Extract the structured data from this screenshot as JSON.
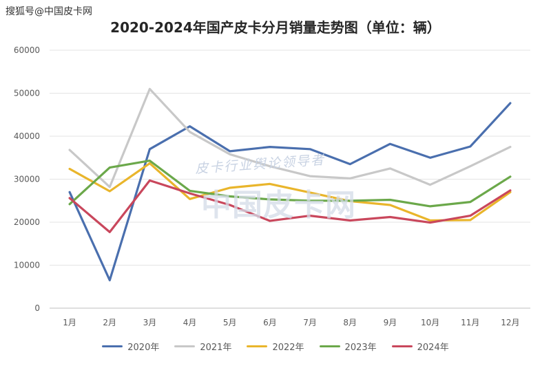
{
  "header": {
    "source_tag": "搜狐号@中国皮卡网",
    "title": "2020-2024年国产皮卡分月销量走势图（单位：辆）"
  },
  "watermark": {
    "top_text": "皮卡行业舆论领导者",
    "main_text": "中国皮卡网"
  },
  "chart_data": {
    "type": "line",
    "title": "2020-2024年国产皮卡分月销量走势图（单位：辆）",
    "xlabel": "",
    "ylabel": "",
    "categories": [
      "1月",
      "2月",
      "3月",
      "4月",
      "5月",
      "6月",
      "7月",
      "8月",
      "9月",
      "10月",
      "11月",
      "12月"
    ],
    "ylim": [
      0,
      60000
    ],
    "yticks": [
      0,
      10000,
      20000,
      30000,
      40000,
      50000,
      60000
    ],
    "grid": true,
    "legend_position": "bottom",
    "series": [
      {
        "name": "2020年",
        "color": "#4a6fae",
        "values": [
          27000,
          6500,
          37000,
          42300,
          36500,
          37500,
          37000,
          33500,
          38200,
          35000,
          37600,
          47700
        ]
      },
      {
        "name": "2021年",
        "color": "#c8c8c8",
        "values": [
          36800,
          28200,
          51000,
          41000,
          35800,
          33000,
          30700,
          30200,
          32500,
          28700,
          33000,
          37500
        ]
      },
      {
        "name": "2022年",
        "color": "#e9b52b",
        "values": [
          32400,
          27200,
          33700,
          25400,
          28000,
          28900,
          26900,
          24900,
          24000,
          20400,
          20500,
          27000
        ]
      },
      {
        "name": "2023年",
        "color": "#6ba84a",
        "values": [
          24200,
          32700,
          34300,
          27300,
          26000,
          25300,
          25000,
          25000,
          25200,
          23700,
          24700,
          30600
        ]
      },
      {
        "name": "2024年",
        "color": "#c9475c",
        "values": [
          25600,
          17700,
          29700,
          26700,
          24000,
          20300,
          21500,
          20400,
          21200,
          19900,
          21500,
          27400
        ]
      }
    ]
  }
}
